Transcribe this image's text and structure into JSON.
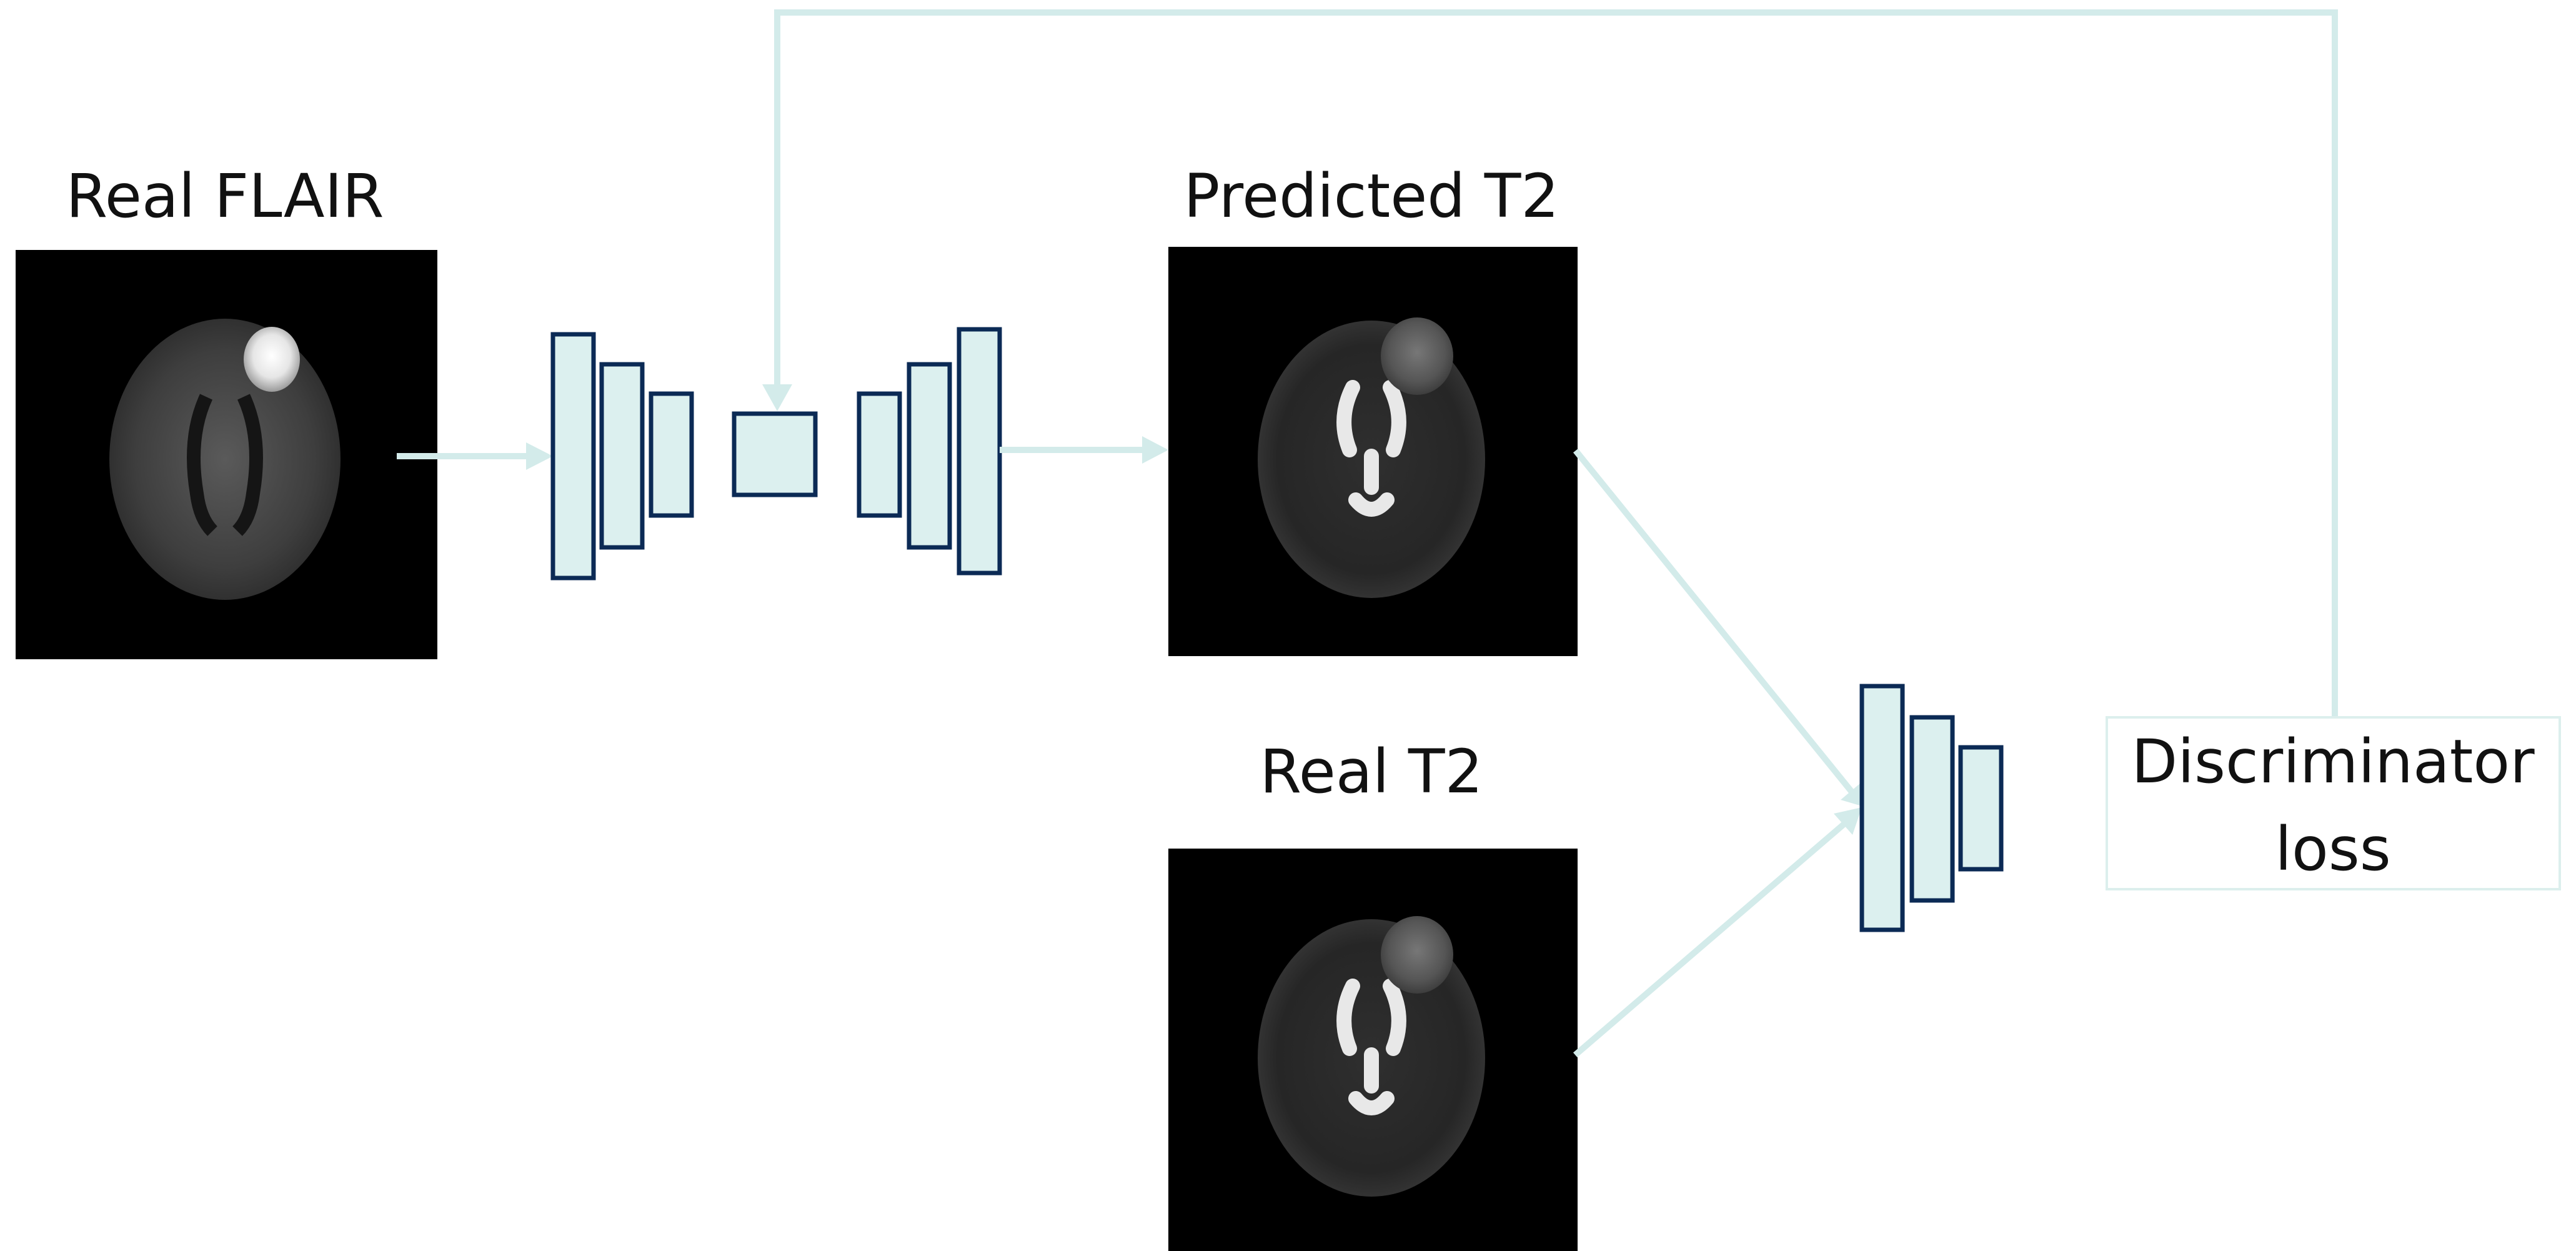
{
  "labels": {
    "real_flair": "Real FLAIR",
    "predicted_t2": "Predicted T2",
    "real_t2": "Real T2",
    "discriminator_line1": "Discriminator",
    "discriminator_line2": "loss"
  },
  "colors": {
    "block_fill": "#dcf0ef",
    "block_stroke": "#0b2a55",
    "arrow": "#d3ebea",
    "loss_box_border": "#dcefed",
    "image_background": "#000000"
  }
}
